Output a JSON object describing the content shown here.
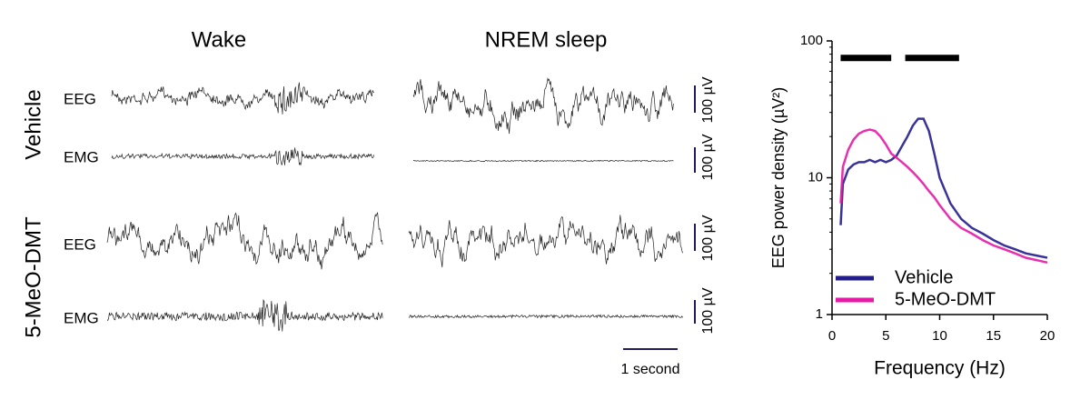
{
  "traces": {
    "columns": [
      "Wake",
      "NREM sleep"
    ],
    "rows": [
      "Vehicle",
      "5-MeO-DMT"
    ],
    "channels": [
      "EEG",
      "EMG",
      "EEG",
      "EMG"
    ],
    "scale_labels": [
      "100 µV",
      "100 µV",
      "100 µV",
      "100 µV"
    ],
    "time_label": "1 second"
  },
  "chart_data": {
    "type": "line",
    "x_label": "Frequency (Hz)",
    "y_label": "EEG power density (µV²)",
    "x": [
      0.8,
      1,
      1.5,
      2,
      2.5,
      3,
      3.5,
      4,
      4.5,
      5,
      5.5,
      6,
      6.5,
      7,
      7.5,
      8,
      8.5,
      9,
      9.5,
      10,
      11,
      12,
      13,
      14,
      15,
      16,
      17,
      18,
      19,
      20
    ],
    "series": [
      {
        "name": "Vehicle",
        "color": "#221c8e",
        "values": [
          4.5,
          9,
          11.5,
          12.5,
          13,
          13,
          13.5,
          13,
          13.5,
          13,
          13.5,
          14.5,
          17,
          20,
          24,
          27,
          27,
          22,
          15,
          10,
          6.5,
          5,
          4.3,
          3.9,
          3.5,
          3.2,
          3,
          2.8,
          2.7,
          2.6
        ]
      },
      {
        "name": "5-MeO-DMT",
        "color": "#e61aa6",
        "values": [
          6.5,
          12,
          16,
          19,
          21,
          22,
          22.5,
          22,
          20,
          17.5,
          15,
          14,
          13,
          12,
          11,
          10,
          9,
          8,
          7.2,
          6.3,
          5,
          4.3,
          3.9,
          3.5,
          3.2,
          3,
          2.8,
          2.6,
          2.5,
          2.4
        ]
      }
    ],
    "significance_bars": [
      [
        0.8,
        5.5
      ],
      [
        6.8,
        11.8
      ]
    ],
    "significance_y": 75,
    "xlim": [
      0,
      20
    ],
    "xticks": [
      0,
      5,
      10,
      15,
      20
    ],
    "ylim": [
      1,
      100
    ],
    "yticks": [
      1,
      10,
      100
    ],
    "yscale": "log",
    "legend": "lower left"
  }
}
